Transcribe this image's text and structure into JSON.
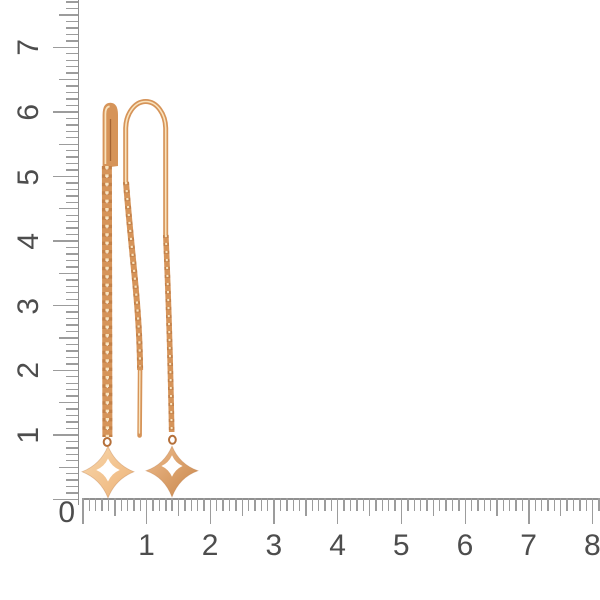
{
  "photo": {
    "description": "pair of rose-gold threader earrings with chain drops and four-point star clover pendants, shown against centimeter rulers"
  },
  "rulers": {
    "corner_label": "0",
    "vertical": {
      "labels": [
        "1",
        "2",
        "3",
        "4",
        "5",
        "6",
        "7"
      ]
    },
    "horizontal": {
      "labels": [
        "1",
        "2",
        "3",
        "4",
        "5",
        "6",
        "7",
        "8"
      ]
    }
  },
  "colors": {
    "background": "#ffffff",
    "ruler_line": "#909090",
    "ruler_tick": "#9c9c9c",
    "ruler_label": "#4d4d4d",
    "gold_mid": "#d69459",
    "gold_dark": "#b5703a",
    "gold_deep": "#9a5a2b",
    "gold_highlight": "#f9e3bd",
    "pendant_left_light": "#f8d7ac",
    "pendant_left_dark": "#edb277",
    "pendant_right_light": "#eebc8d",
    "pendant_right_dark": "#c8864a",
    "cutout": "#ffffff"
  }
}
